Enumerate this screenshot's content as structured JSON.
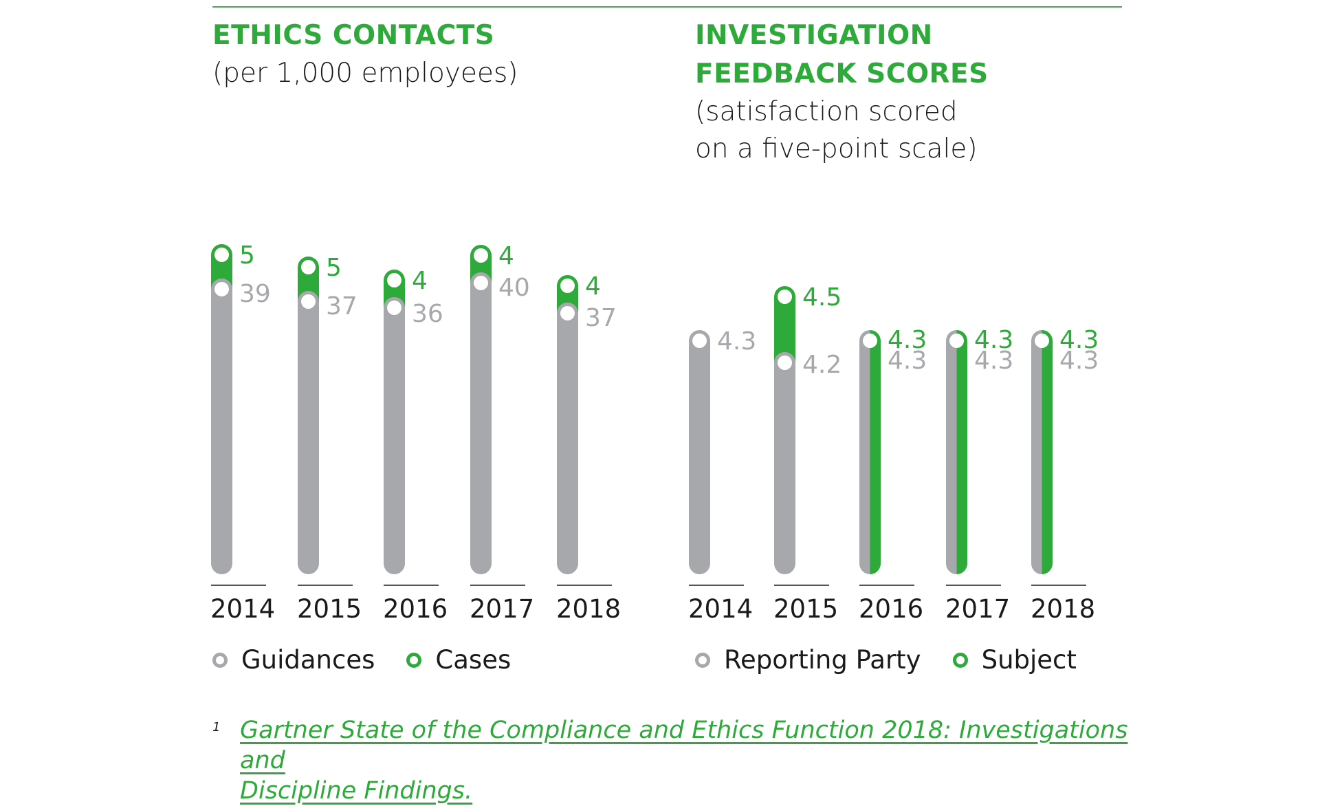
{
  "colors": {
    "accent": "#2eaa3b",
    "gray": "#a7a8ac",
    "text": "#1a1a1a"
  },
  "left": {
    "title": "ETHICS CONTACTS",
    "subtitle": "(per 1,000 employees)",
    "legend": [
      {
        "label": "Guidances",
        "color": "#a7a8ac"
      },
      {
        "label": "Cases",
        "color": "#2eaa3b"
      }
    ]
  },
  "right": {
    "title_line1": "INVESTIGATION",
    "title_line2": "FEEDBACK SCORES",
    "subtitle_line1": "(satisfaction scored",
    "subtitle_line2": "on a five-point scale)",
    "legend": [
      {
        "label": "Reporting Party",
        "color": "#a7a8ac"
      },
      {
        "label": "Subject",
        "color": "#2eaa3b"
      }
    ]
  },
  "footnote": {
    "marker": "1",
    "text_line1": "Gartner State of the Compliance and Ethics Function 2018: Investigations and",
    "text_line2": "Discipline Findings."
  },
  "chart_data": [
    {
      "type": "bar",
      "title": "ETHICS CONTACTS",
      "subtitle": "(per 1,000 employees)",
      "categories": [
        "2014",
        "2015",
        "2016",
        "2017",
        "2018"
      ],
      "series": [
        {
          "name": "Guidances",
          "values": [
            39,
            37,
            36,
            40,
            37
          ],
          "color": "#a7a8ac"
        },
        {
          "name": "Cases",
          "values": [
            5,
            5,
            4,
            4,
            4
          ],
          "color": "#2eaa3b"
        }
      ],
      "stacked": true,
      "legend": "bottom-left",
      "grid": false
    },
    {
      "type": "bar",
      "title": "INVESTIGATION FEEDBACK SCORES",
      "subtitle": "(satisfaction scored on a five-point scale)",
      "categories": [
        "2014",
        "2015",
        "2016",
        "2017",
        "2018"
      ],
      "series": [
        {
          "name": "Reporting Party",
          "values": [
            4.3,
            4.2,
            4.3,
            4.3,
            4.3
          ],
          "color": "#a7a8ac"
        },
        {
          "name": "Subject",
          "values": [
            null,
            4.5,
            4.3,
            4.3,
            4.3
          ],
          "color": "#2eaa3b"
        }
      ],
      "legend": "bottom-left",
      "grid": false
    }
  ]
}
